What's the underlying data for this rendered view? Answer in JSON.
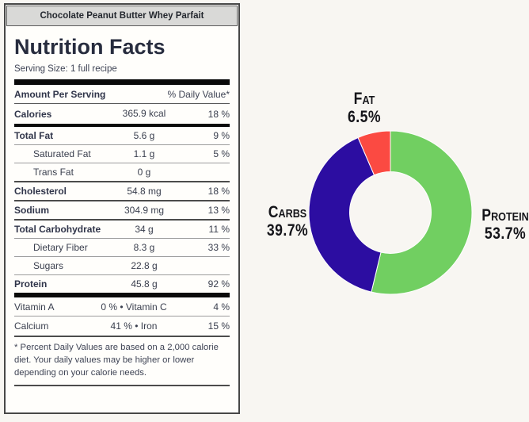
{
  "nutrition_label": {
    "header": "Chocolate Peanut Butter Whey Parfait",
    "title": "Nutrition Facts",
    "serving_size": "Serving Size: 1 full recipe",
    "amount_header": "Amount Per Serving",
    "dv_header": "% Daily Value*",
    "calories": {
      "label": "Calories",
      "amount": "365.9 kcal",
      "dv": "18 %"
    },
    "rows": [
      {
        "label": "Total Fat",
        "amount": "5.6 g",
        "dv": "9 %",
        "bold": true,
        "indent": false,
        "divider": "thick"
      },
      {
        "label": "Saturated Fat",
        "amount": "1.1 g",
        "dv": "5 %",
        "bold": false,
        "indent": true,
        "divider": "thin"
      },
      {
        "label": "Trans Fat",
        "amount": "0 g",
        "dv": "",
        "bold": false,
        "indent": true,
        "divider": "thin"
      },
      {
        "label": "Cholesterol",
        "amount": "54.8 mg",
        "dv": "18 %",
        "bold": true,
        "indent": false,
        "divider": "medium"
      },
      {
        "label": "Sodium",
        "amount": "304.9 mg",
        "dv": "13 %",
        "bold": true,
        "indent": false,
        "divider": "medium"
      },
      {
        "label": "Total Carbohydrate",
        "amount": "34 g",
        "dv": "11 %",
        "bold": true,
        "indent": false,
        "divider": "medium"
      },
      {
        "label": "Dietary Fiber",
        "amount": "8.3 g",
        "dv": "33 %",
        "bold": false,
        "indent": true,
        "divider": "thin"
      },
      {
        "label": "Sugars",
        "amount": "22.8 g",
        "dv": "",
        "bold": false,
        "indent": true,
        "divider": "thin"
      },
      {
        "label": "Protein",
        "amount": "45.8 g",
        "dv": "92 %",
        "bold": true,
        "indent": false,
        "divider": "thin"
      }
    ],
    "vitamins": [
      {
        "label": "Vitamin A",
        "middle": "0 % • Vitamin C",
        "dv": "4 %",
        "divider": "none"
      },
      {
        "label": "Calcium",
        "middle": "41 % • Iron",
        "dv": "15 %",
        "divider": "thin"
      }
    ],
    "footnote": "* Percent Daily Values are based on a 2,000 calorie diet. Your daily values may be higher or lower depending on your calorie needs."
  },
  "chart_data": {
    "type": "pie",
    "subtype": "donut",
    "hole_ratio": 0.5,
    "start_angle_deg": 0,
    "direction": "clockwise",
    "legend": "off",
    "labels": [
      "Protein",
      "Carbs",
      "Fat"
    ],
    "values": [
      53.7,
      39.7,
      6.5
    ],
    "colors": [
      "#71cf61",
      "#2c0da1",
      "#fb4a42"
    ],
    "annotations": [
      {
        "label": "Fat",
        "value_text": "6.5%"
      },
      {
        "label": "Carbs",
        "value_text": "39.7%"
      },
      {
        "label": "Protein",
        "value_text": "53.7%"
      }
    ]
  }
}
